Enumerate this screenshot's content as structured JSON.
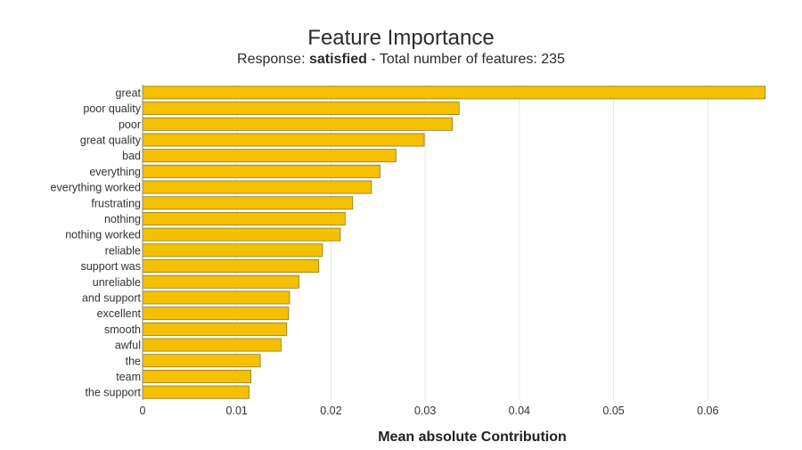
{
  "chart_data": {
    "type": "bar",
    "orientation": "horizontal",
    "title": "Feature Importance",
    "subtitle": {
      "prefix": "Response: ",
      "response": "satisfied",
      "suffix": " - Total number of features: 235"
    },
    "xlabel": "Mean absolute Contribution",
    "ylabel": "",
    "xlim": [
      0,
      0.0665
    ],
    "xticks": [
      0,
      0.01,
      0.02,
      0.03,
      0.04,
      0.05,
      0.06
    ],
    "xtick_labels": [
      "0",
      "0.01",
      "0.02",
      "0.03",
      "0.04",
      "0.05",
      "0.06"
    ],
    "grid": true,
    "legend": "none",
    "categories": [
      "great",
      "poor quality",
      "poor",
      "great quality",
      "bad",
      "everything",
      "everything worked",
      "frustrating",
      "nothing",
      "nothing worked",
      "reliable",
      "support was",
      "unreliable",
      "and support",
      "excellent",
      "smooth",
      "awful",
      "the",
      "team",
      "the support"
    ],
    "values": [
      0.0661,
      0.0336,
      0.0329,
      0.0299,
      0.0269,
      0.0252,
      0.0243,
      0.0223,
      0.0215,
      0.021,
      0.0191,
      0.0187,
      0.0166,
      0.0156,
      0.0155,
      0.0153,
      0.0147,
      0.0125,
      0.0115,
      0.0113
    ],
    "colors": {
      "bar_fill": "#f5c000",
      "bar_stroke": "#8a7a2a",
      "grid": "#e6e6e6",
      "axis": "#888888"
    }
  }
}
